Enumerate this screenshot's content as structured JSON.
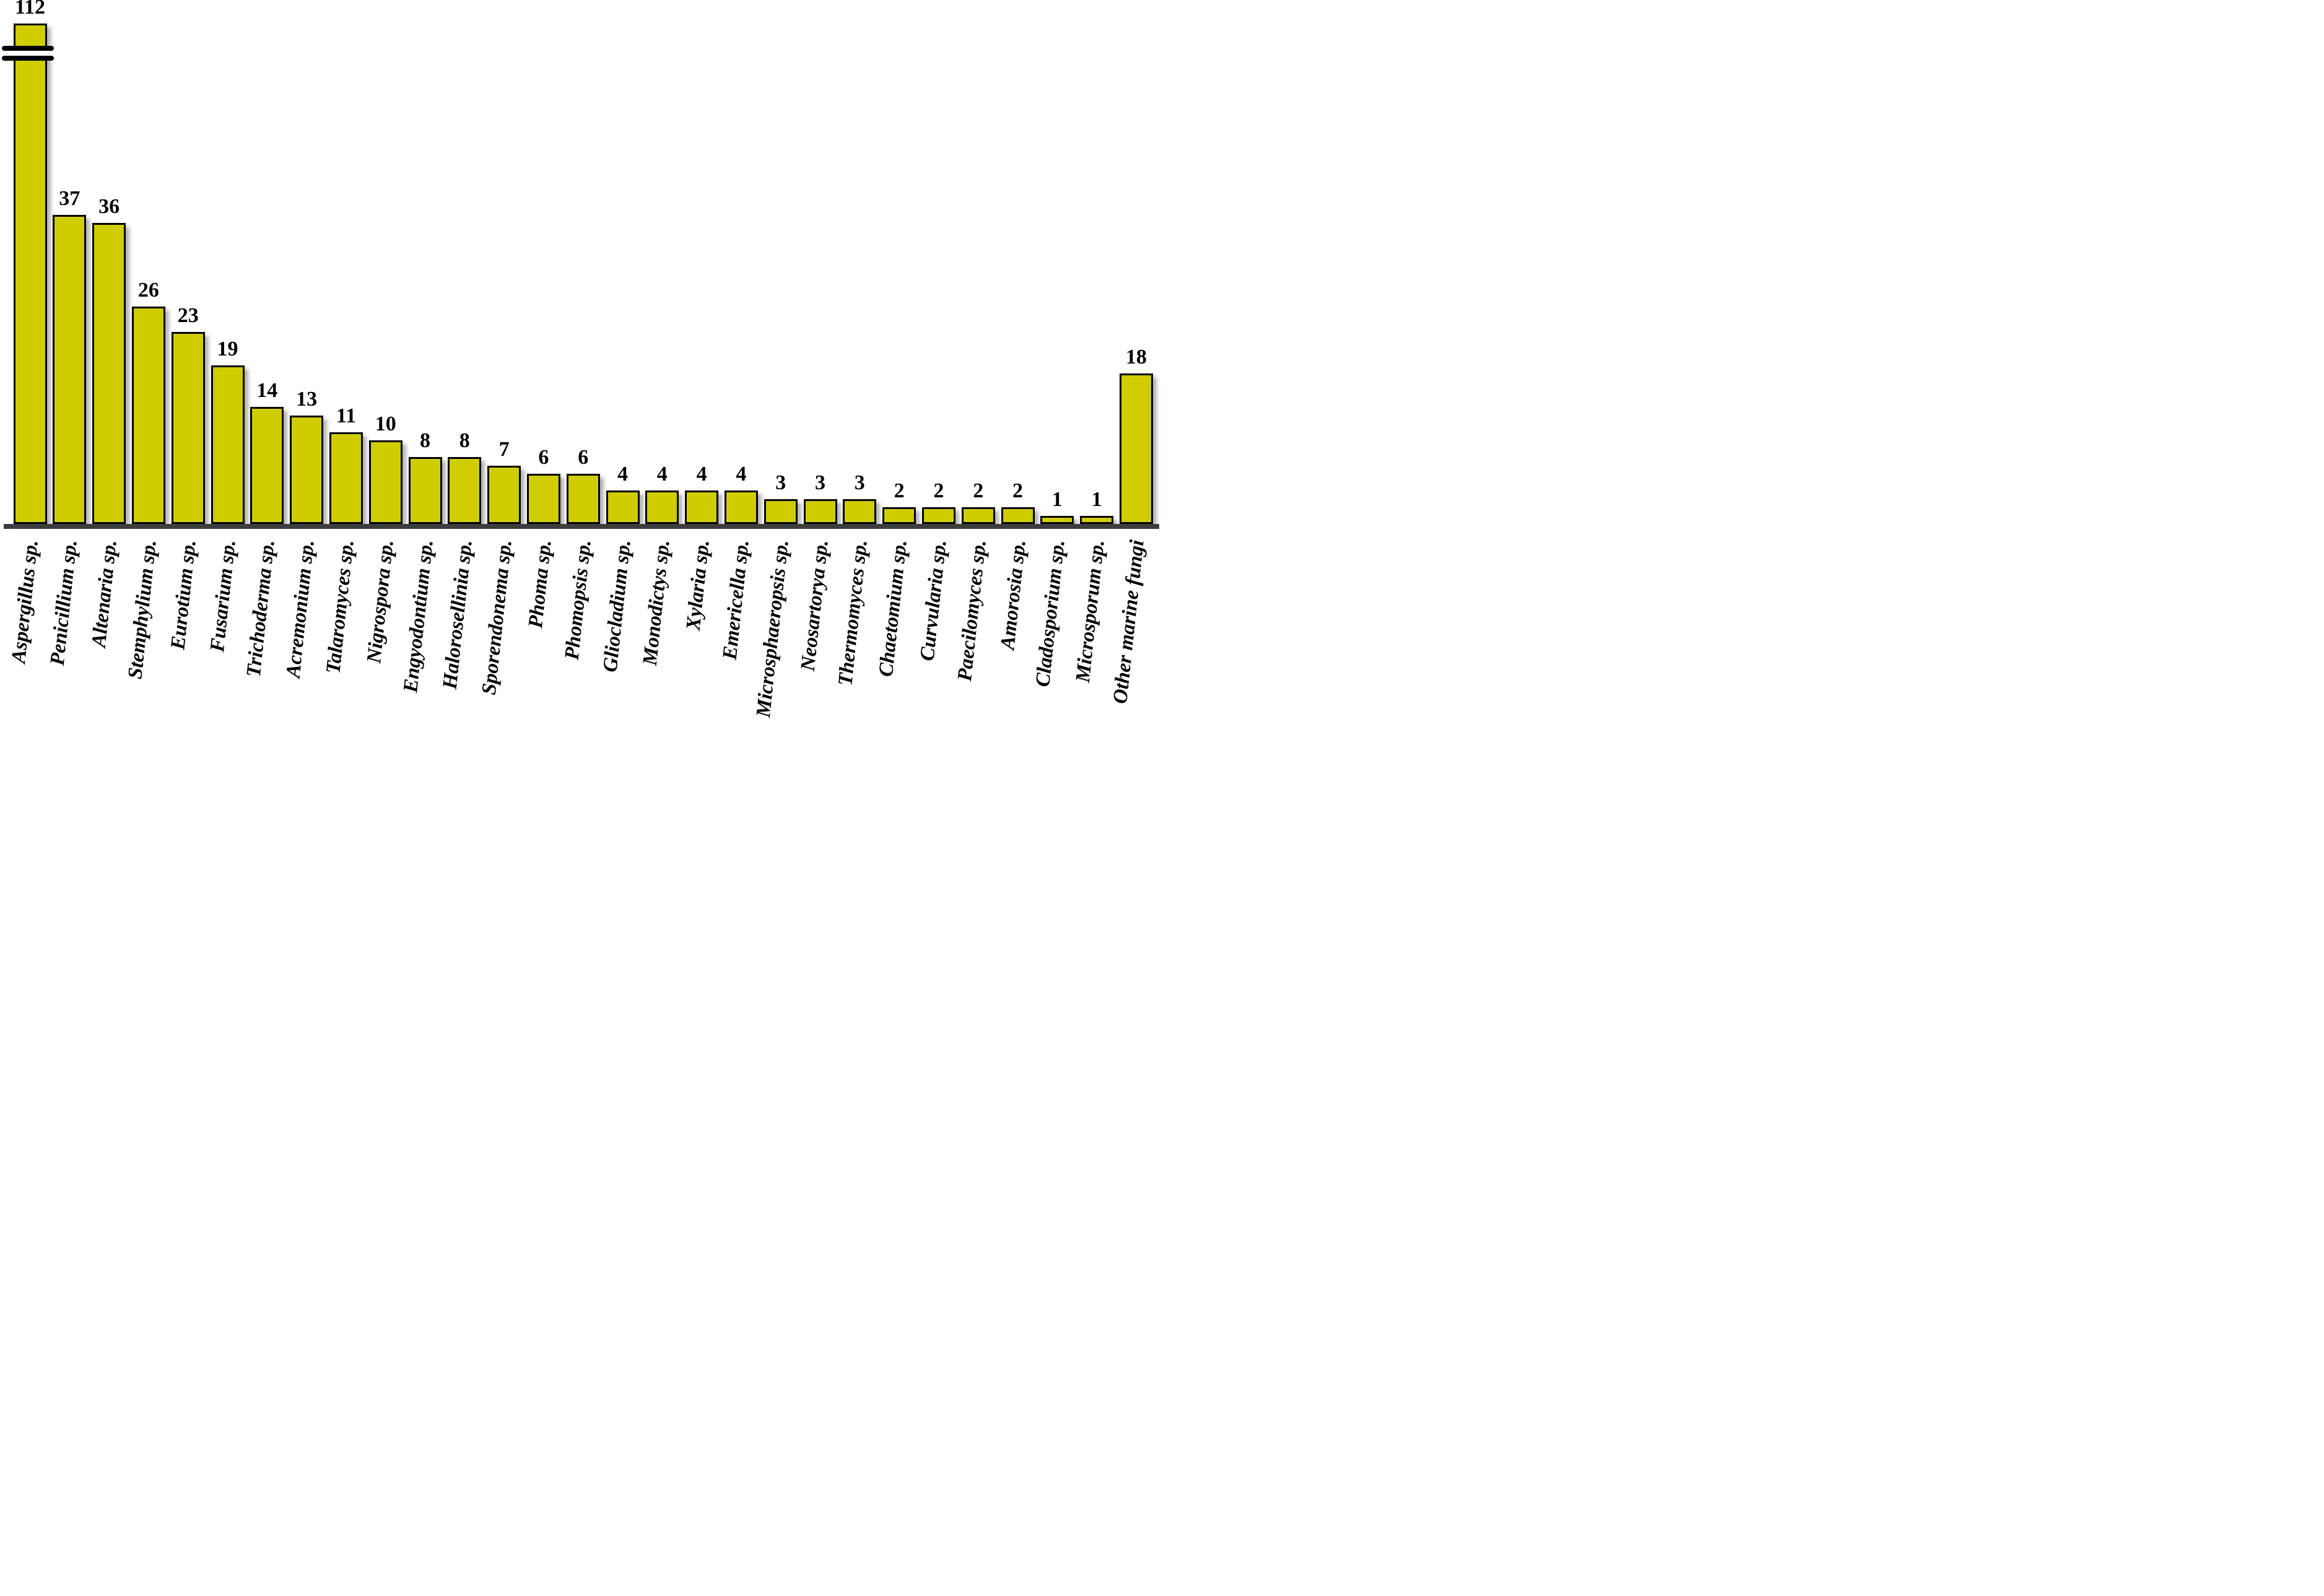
{
  "chart_data": {
    "type": "bar",
    "title": "",
    "xlabel": "",
    "ylabel": "",
    "grid": false,
    "legend": false,
    "background_color": "#ffffff",
    "bar_color": "#cfcc00",
    "bar_border_color": "#000000",
    "baseline_color": "#3d3d3d",
    "value_label_color": "#000000",
    "category_label_style": "bold italic serif, rotated ~84deg counterclockwise",
    "axis_break": {
      "present": true,
      "on_category": "Aspergillus sp.",
      "symbol": "double black rounded lines across truncated first bar"
    },
    "categories": [
      "Aspergillus sp.",
      "Penicillium sp.",
      "Altenaria sp.",
      "Stemphylium sp.",
      "Eurotium sp.",
      "Fusarium sp.",
      "Trichoderma sp.",
      "Acremonium sp.",
      "Talaromyces sp.",
      "Nigrospora sp.",
      "Engyodontium sp.",
      "Halorosellinia sp.",
      "Sporendonema sp.",
      "Phoma sp.",
      "Phomopsis sp.",
      "Gliocladium sp.",
      "Monodictys sp.",
      "Xylaria sp.",
      "Emericella sp.",
      "Microsphaeropsis sp.",
      "Neosartorya sp.",
      "Thermomyces sp.",
      "Chaetomium sp.",
      "Curvularia sp.",
      "Paecilomyces sp.",
      "Amorosia sp.",
      "Cladosporium sp.",
      "Microsporum sp.",
      "Other marine fungi"
    ],
    "values": [
      112,
      37,
      36,
      26,
      23,
      19,
      14,
      13,
      11,
      10,
      8,
      8,
      7,
      6,
      6,
      4,
      4,
      4,
      4,
      3,
      3,
      3,
      2,
      2,
      2,
      2,
      1,
      1,
      18
    ]
  }
}
